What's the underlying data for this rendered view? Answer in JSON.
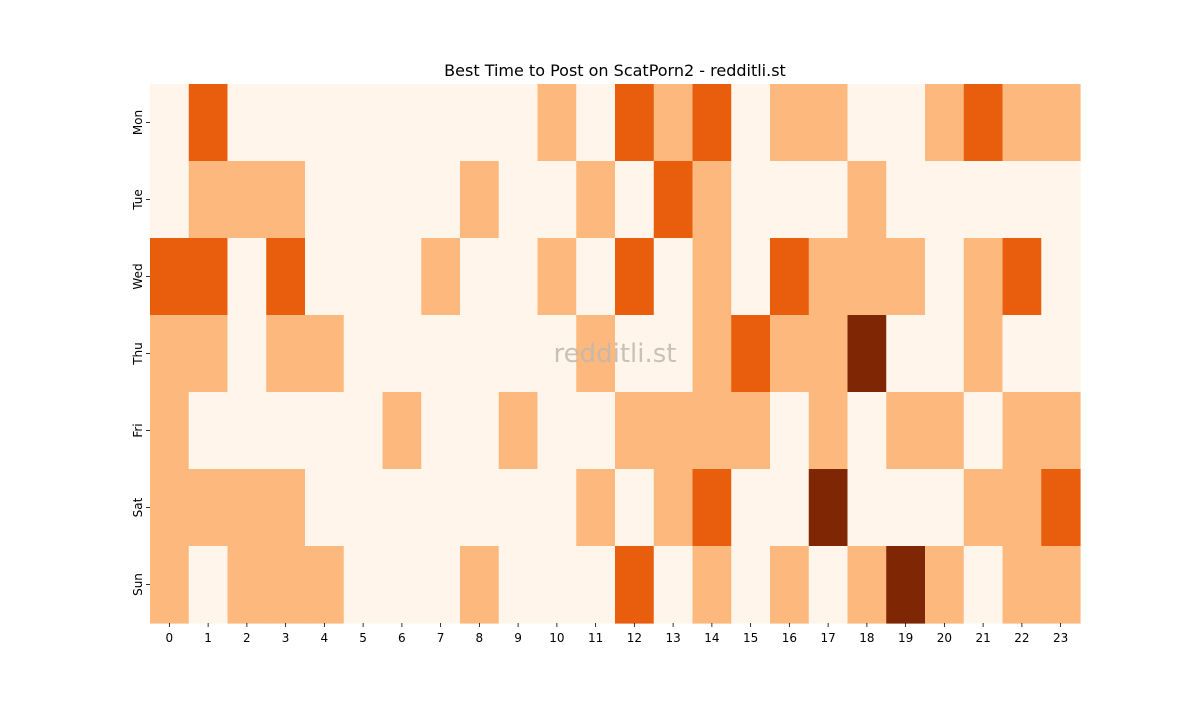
{
  "chart_data": {
    "type": "heatmap",
    "title": "Best Time to Post on ScatPorn2 - redditli.st",
    "watermark": "redditli.st",
    "xlabel": "",
    "ylabel": "",
    "x": [
      "0",
      "1",
      "2",
      "3",
      "4",
      "5",
      "6",
      "7",
      "8",
      "9",
      "10",
      "11",
      "12",
      "13",
      "14",
      "15",
      "16",
      "17",
      "18",
      "19",
      "20",
      "21",
      "22",
      "23"
    ],
    "y": [
      "Mon",
      "Tue",
      "Wed",
      "Thu",
      "Fri",
      "Sat",
      "Sun"
    ],
    "levels": [
      0,
      1,
      2,
      3
    ],
    "colors": [
      "#fff5eb",
      "#fdb97d",
      "#e95e0d",
      "#7f2704"
    ],
    "values": [
      [
        0,
        2,
        0,
        0,
        0,
        0,
        0,
        0,
        0,
        0,
        1,
        0,
        2,
        1,
        2,
        0,
        1,
        1,
        0,
        0,
        1,
        2,
        1,
        1
      ],
      [
        0,
        1,
        1,
        1,
        0,
        0,
        0,
        0,
        1,
        0,
        0,
        1,
        0,
        2,
        1,
        0,
        0,
        0,
        1,
        0,
        0,
        0,
        0,
        0
      ],
      [
        2,
        2,
        0,
        2,
        0,
        0,
        0,
        1,
        0,
        0,
        1,
        0,
        2,
        0,
        1,
        0,
        2,
        1,
        1,
        1,
        0,
        1,
        2,
        0
      ],
      [
        1,
        1,
        0,
        1,
        1,
        0,
        0,
        0,
        0,
        0,
        0,
        1,
        0,
        0,
        1,
        2,
        1,
        1,
        3,
        0,
        0,
        1,
        0,
        0
      ],
      [
        1,
        0,
        0,
        0,
        0,
        0,
        1,
        0,
        0,
        1,
        0,
        0,
        1,
        1,
        1,
        1,
        0,
        1,
        0,
        1,
        1,
        0,
        1,
        1
      ],
      [
        1,
        1,
        1,
        1,
        0,
        0,
        0,
        0,
        0,
        0,
        0,
        1,
        0,
        1,
        2,
        0,
        0,
        3,
        0,
        0,
        0,
        1,
        1,
        2
      ],
      [
        1,
        0,
        1,
        1,
        1,
        0,
        0,
        0,
        1,
        0,
        0,
        0,
        2,
        0,
        1,
        0,
        1,
        0,
        1,
        3,
        1,
        0,
        1,
        1
      ]
    ],
    "colorbar": false,
    "grid": false
  }
}
